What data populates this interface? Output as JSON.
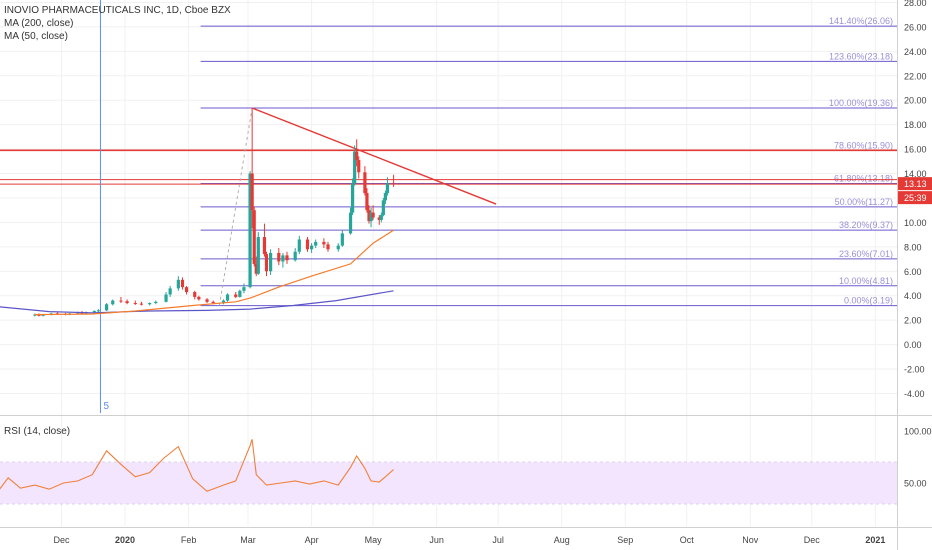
{
  "legend": {
    "title": "INOVIO PHARMACEUTICALS INC, 1D, Cboe BZX",
    "ma200": "MA (200, close)",
    "ma50": "MA (50, close)",
    "rsi": "RSI (14, close)"
  },
  "price_badges": {
    "last": "13.13",
    "countdown": "25:39"
  },
  "marker": {
    "label": "5"
  },
  "colors": {
    "up": "#26a69a",
    "down": "#e53935",
    "ma50": "#f57c2b",
    "ma200": "#5c55c7",
    "fib": "#6a5acd",
    "trend": "#e53935",
    "rsi": "#f0803c",
    "rsi_band": "#f3e5fd",
    "grid": "#f1f1f1",
    "axis_text": "#444444"
  },
  "chart_data": {
    "type": "candlestick",
    "symbol": "INOVIO PHARMACEUTICALS INC",
    "interval": "1D",
    "exchange": "Cboe BZX",
    "x_tick_labels": [
      "Dec",
      "2020",
      "Feb",
      "Mar",
      "Apr",
      "May",
      "Jun",
      "Jul",
      "Aug",
      "Sep",
      "Oct",
      "Nov",
      "Dec",
      "2021"
    ],
    "y_tick_labels": [
      "28.00",
      "26.00",
      "24.00",
      "22.00",
      "20.00",
      "18.00",
      "16.00",
      "14.00",
      "12.00",
      "10.00",
      "8.00",
      "6.00",
      "4.00",
      "2.00",
      "0.00",
      "-2.00",
      "-4.00"
    ],
    "ylim": [
      -5.6,
      28.2
    ],
    "rsi_tick_labels": [
      "100.00",
      "50.00"
    ],
    "rsi_band": [
      30,
      70
    ],
    "fib_levels": [
      {
        "label": "0.00%(3.19)",
        "value": 3.19
      },
      {
        "label": "10.00%(4.81)",
        "value": 4.81
      },
      {
        "label": "23.60%(7.01)",
        "value": 7.01
      },
      {
        "label": "38.20%(9.37)",
        "value": 9.37
      },
      {
        "label": "50.00%(11.27)",
        "value": 11.27
      },
      {
        "label": "61.80%(13.18)",
        "value": 13.18
      },
      {
        "label": "78.60%(15.90)",
        "value": 15.9
      },
      {
        "label": "100.00%(19.36)",
        "value": 19.36
      },
      {
        "label": "123.60%(23.18)",
        "value": 23.18
      },
      {
        "label": "141.40%(26.06)",
        "value": 26.06
      }
    ],
    "horizontal_lines": [
      15.9,
      13.5,
      13.13
    ],
    "trendline": {
      "from": {
        "date": "2020-03-03",
        "value": 19.36
      },
      "to": {
        "date": "2020-06-30",
        "value": 11.5
      }
    },
    "daily_candles": [
      {
        "date": "2019-11-18",
        "open": 2.4,
        "high": 2.55,
        "low": 2.3,
        "close": 2.45
      },
      {
        "date": "2019-11-20",
        "open": 2.45,
        "high": 2.55,
        "low": 2.3,
        "close": 2.35
      },
      {
        "date": "2019-11-22",
        "open": 2.35,
        "high": 2.5,
        "low": 2.3,
        "close": 2.45
      },
      {
        "date": "2019-11-26",
        "open": 2.45,
        "high": 2.6,
        "low": 2.4,
        "close": 2.55
      },
      {
        "date": "2019-11-29",
        "open": 2.55,
        "high": 2.65,
        "low": 2.45,
        "close": 2.5
      },
      {
        "date": "2019-12-03",
        "open": 2.5,
        "high": 2.6,
        "low": 2.4,
        "close": 2.45
      },
      {
        "date": "2019-12-05",
        "open": 2.45,
        "high": 2.6,
        "low": 2.4,
        "close": 2.55
      },
      {
        "date": "2019-12-09",
        "open": 2.55,
        "high": 2.7,
        "low": 2.5,
        "close": 2.65
      },
      {
        "date": "2019-12-11",
        "open": 2.65,
        "high": 2.75,
        "low": 2.5,
        "close": 2.55
      },
      {
        "date": "2019-12-13",
        "open": 2.55,
        "high": 2.7,
        "low": 2.5,
        "close": 2.65
      },
      {
        "date": "2019-12-17",
        "open": 2.65,
        "high": 2.8,
        "low": 2.55,
        "close": 2.75
      },
      {
        "date": "2019-12-19",
        "open": 2.75,
        "high": 2.9,
        "low": 2.65,
        "close": 2.8
      },
      {
        "date": "2019-12-23",
        "open": 2.8,
        "high": 3.4,
        "low": 2.75,
        "close": 3.3
      },
      {
        "date": "2019-12-26",
        "open": 3.3,
        "high": 3.7,
        "low": 3.2,
        "close": 3.6
      },
      {
        "date": "2019-12-30",
        "open": 3.6,
        "high": 3.9,
        "low": 3.4,
        "close": 3.55
      },
      {
        "date": "2020-01-02",
        "open": 3.55,
        "high": 3.7,
        "low": 3.3,
        "close": 3.4
      },
      {
        "date": "2020-01-06",
        "open": 3.4,
        "high": 3.6,
        "low": 3.25,
        "close": 3.35
      },
      {
        "date": "2020-01-09",
        "open": 3.35,
        "high": 3.5,
        "low": 3.2,
        "close": 3.3
      },
      {
        "date": "2020-01-13",
        "open": 3.3,
        "high": 3.45,
        "low": 3.2,
        "close": 3.4
      },
      {
        "date": "2020-01-16",
        "open": 3.4,
        "high": 3.6,
        "low": 3.3,
        "close": 3.5
      },
      {
        "date": "2020-01-21",
        "open": 3.5,
        "high": 4.3,
        "low": 3.45,
        "close": 4.1
      },
      {
        "date": "2020-01-23",
        "open": 4.1,
        "high": 4.8,
        "low": 3.9,
        "close": 4.6
      },
      {
        "date": "2020-01-27",
        "open": 4.6,
        "high": 5.6,
        "low": 4.4,
        "close": 5.3
      },
      {
        "date": "2020-01-29",
        "open": 5.3,
        "high": 5.5,
        "low": 4.5,
        "close": 4.7
      },
      {
        "date": "2020-01-31",
        "open": 4.7,
        "high": 4.8,
        "low": 4.1,
        "close": 4.3
      },
      {
        "date": "2020-02-04",
        "open": 4.3,
        "high": 4.4,
        "low": 3.7,
        "close": 3.9
      },
      {
        "date": "2020-02-06",
        "open": 3.9,
        "high": 4.0,
        "low": 3.6,
        "close": 3.7
      },
      {
        "date": "2020-02-10",
        "open": 3.7,
        "high": 3.8,
        "low": 3.4,
        "close": 3.5
      },
      {
        "date": "2020-02-13",
        "open": 3.5,
        "high": 3.6,
        "low": 3.3,
        "close": 3.4
      },
      {
        "date": "2020-02-18",
        "open": 3.4,
        "high": 3.7,
        "low": 3.3,
        "close": 3.6
      },
      {
        "date": "2020-02-20",
        "open": 3.6,
        "high": 4.2,
        "low": 3.5,
        "close": 4.1
      },
      {
        "date": "2020-02-24",
        "open": 4.1,
        "high": 4.3,
        "low": 3.8,
        "close": 3.9
      },
      {
        "date": "2020-02-26",
        "open": 3.9,
        "high": 4.5,
        "low": 3.85,
        "close": 4.4
      },
      {
        "date": "2020-02-28",
        "open": 4.4,
        "high": 5.0,
        "low": 4.2,
        "close": 4.7
      },
      {
        "date": "2020-03-02",
        "open": 4.7,
        "high": 14.2,
        "low": 4.6,
        "close": 14.0
      },
      {
        "date": "2020-03-03",
        "open": 14.0,
        "high": 19.36,
        "low": 9.5,
        "close": 11.0
      },
      {
        "date": "2020-03-04",
        "open": 11.0,
        "high": 11.3,
        "low": 6.4,
        "close": 6.6
      },
      {
        "date": "2020-03-05",
        "open": 6.6,
        "high": 7.2,
        "low": 5.6,
        "close": 5.8
      },
      {
        "date": "2020-03-06",
        "open": 5.8,
        "high": 9.2,
        "low": 5.7,
        "close": 8.8
      },
      {
        "date": "2020-03-09",
        "open": 8.8,
        "high": 9.9,
        "low": 7.2,
        "close": 7.4
      },
      {
        "date": "2020-03-10",
        "open": 7.4,
        "high": 7.6,
        "low": 5.6,
        "close": 6.0
      },
      {
        "date": "2020-03-12",
        "open": 6.0,
        "high": 7.8,
        "low": 5.7,
        "close": 7.5
      },
      {
        "date": "2020-03-16",
        "open": 7.5,
        "high": 7.9,
        "low": 6.5,
        "close": 6.8
      },
      {
        "date": "2020-03-18",
        "open": 6.8,
        "high": 7.5,
        "low": 6.3,
        "close": 7.3
      },
      {
        "date": "2020-03-20",
        "open": 7.3,
        "high": 7.6,
        "low": 6.6,
        "close": 6.9
      },
      {
        "date": "2020-03-24",
        "open": 6.9,
        "high": 7.9,
        "low": 6.8,
        "close": 7.6
      },
      {
        "date": "2020-03-26",
        "open": 7.6,
        "high": 8.9,
        "low": 7.4,
        "close": 8.6
      },
      {
        "date": "2020-03-30",
        "open": 8.6,
        "high": 8.8,
        "low": 7.6,
        "close": 7.8
      },
      {
        "date": "2020-04-01",
        "open": 7.8,
        "high": 8.3,
        "low": 7.5,
        "close": 8.1
      },
      {
        "date": "2020-04-03",
        "open": 8.1,
        "high": 8.6,
        "low": 7.9,
        "close": 8.4
      },
      {
        "date": "2020-04-07",
        "open": 8.4,
        "high": 8.7,
        "low": 7.9,
        "close": 8.2
      },
      {
        "date": "2020-04-09",
        "open": 8.2,
        "high": 8.4,
        "low": 7.6,
        "close": 7.8
      },
      {
        "date": "2020-04-14",
        "open": 7.8,
        "high": 8.3,
        "low": 7.6,
        "close": 8.1
      },
      {
        "date": "2020-04-16",
        "open": 8.1,
        "high": 9.4,
        "low": 8.0,
        "close": 9.1
      },
      {
        "date": "2020-04-20",
        "open": 9.1,
        "high": 11.2,
        "low": 9.0,
        "close": 10.8
      },
      {
        "date": "2020-04-21",
        "open": 10.8,
        "high": 13.6,
        "low": 10.6,
        "close": 13.2
      },
      {
        "date": "2020-04-22",
        "open": 13.2,
        "high": 16.3,
        "low": 13.0,
        "close": 15.8
      },
      {
        "date": "2020-04-23",
        "open": 15.8,
        "high": 16.8,
        "low": 14.6,
        "close": 15.1
      },
      {
        "date": "2020-04-24",
        "open": 15.1,
        "high": 15.4,
        "low": 13.6,
        "close": 14.1
      },
      {
        "date": "2020-04-27",
        "open": 14.1,
        "high": 14.6,
        "low": 12.2,
        "close": 12.4
      },
      {
        "date": "2020-04-28",
        "open": 12.4,
        "high": 12.8,
        "low": 10.8,
        "close": 11.0
      },
      {
        "date": "2020-04-29",
        "open": 11.0,
        "high": 11.4,
        "low": 9.9,
        "close": 10.1
      },
      {
        "date": "2020-04-30",
        "open": 10.1,
        "high": 11.2,
        "low": 9.6,
        "close": 10.8
      },
      {
        "date": "2020-05-01",
        "open": 10.8,
        "high": 11.4,
        "low": 10.2,
        "close": 10.4
      },
      {
        "date": "2020-05-04",
        "open": 10.4,
        "high": 10.6,
        "low": 9.8,
        "close": 10.2
      },
      {
        "date": "2020-05-05",
        "open": 10.2,
        "high": 10.8,
        "low": 10.0,
        "close": 10.6
      },
      {
        "date": "2020-05-06",
        "open": 10.6,
        "high": 12.0,
        "low": 10.5,
        "close": 11.8
      },
      {
        "date": "2020-05-07",
        "open": 11.8,
        "high": 12.6,
        "low": 11.5,
        "close": 12.4
      },
      {
        "date": "2020-05-08",
        "open": 12.4,
        "high": 13.7,
        "low": 12.2,
        "close": 13.2
      },
      {
        "date": "2020-05-11",
        "open": 13.2,
        "high": 13.9,
        "low": 12.9,
        "close": 13.13
      }
    ],
    "ma50": [
      {
        "date": "2019-11-18",
        "value": 2.45
      },
      {
        "date": "2019-12-16",
        "value": 2.5
      },
      {
        "date": "2020-01-06",
        "value": 2.75
      },
      {
        "date": "2020-02-03",
        "value": 3.2
      },
      {
        "date": "2020-02-24",
        "value": 3.5
      },
      {
        "date": "2020-03-02",
        "value": 3.8
      },
      {
        "date": "2020-03-16",
        "value": 4.7
      },
      {
        "date": "2020-04-01",
        "value": 5.6
      },
      {
        "date": "2020-04-20",
        "value": 6.6
      },
      {
        "date": "2020-05-01",
        "value": 8.3
      },
      {
        "date": "2020-05-11",
        "value": 9.37
      }
    ],
    "ma200": [
      {
        "date": "2019-10-31",
        "value": 3.1
      },
      {
        "date": "2019-11-25",
        "value": 2.7
      },
      {
        "date": "2019-12-16",
        "value": 2.6
      },
      {
        "date": "2020-01-13",
        "value": 2.75
      },
      {
        "date": "2020-02-10",
        "value": 2.8
      },
      {
        "date": "2020-03-02",
        "value": 2.9
      },
      {
        "date": "2020-03-23",
        "value": 3.2
      },
      {
        "date": "2020-04-13",
        "value": 3.6
      },
      {
        "date": "2020-05-11",
        "value": 4.4
      }
    ],
    "rsi_values": [
      {
        "date": "2019-10-31",
        "value": 42
      },
      {
        "date": "2019-11-05",
        "value": 55
      },
      {
        "date": "2019-11-11",
        "value": 45
      },
      {
        "date": "2019-11-18",
        "value": 48
      },
      {
        "date": "2019-11-25",
        "value": 44
      },
      {
        "date": "2019-12-02",
        "value": 50
      },
      {
        "date": "2019-12-09",
        "value": 52
      },
      {
        "date": "2019-12-16",
        "value": 58
      },
      {
        "date": "2019-12-23",
        "value": 81
      },
      {
        "date": "2019-12-30",
        "value": 68
      },
      {
        "date": "2020-01-06",
        "value": 56
      },
      {
        "date": "2020-01-13",
        "value": 60
      },
      {
        "date": "2020-01-20",
        "value": 74
      },
      {
        "date": "2020-01-27",
        "value": 85
      },
      {
        "date": "2020-02-03",
        "value": 54
      },
      {
        "date": "2020-02-10",
        "value": 42
      },
      {
        "date": "2020-02-18",
        "value": 48
      },
      {
        "date": "2020-02-24",
        "value": 52
      },
      {
        "date": "2020-03-02",
        "value": 86
      },
      {
        "date": "2020-03-03",
        "value": 92
      },
      {
        "date": "2020-03-05",
        "value": 58
      },
      {
        "date": "2020-03-10",
        "value": 48
      },
      {
        "date": "2020-03-17",
        "value": 50
      },
      {
        "date": "2020-03-24",
        "value": 52
      },
      {
        "date": "2020-03-31",
        "value": 49
      },
      {
        "date": "2020-04-07",
        "value": 52
      },
      {
        "date": "2020-04-14",
        "value": 48
      },
      {
        "date": "2020-04-20",
        "value": 65
      },
      {
        "date": "2020-04-23",
        "value": 76
      },
      {
        "date": "2020-04-27",
        "value": 64
      },
      {
        "date": "2020-04-30",
        "value": 52
      },
      {
        "date": "2020-05-04",
        "value": 51
      },
      {
        "date": "2020-05-07",
        "value": 56
      },
      {
        "date": "2020-05-11",
        "value": 63
      }
    ]
  }
}
